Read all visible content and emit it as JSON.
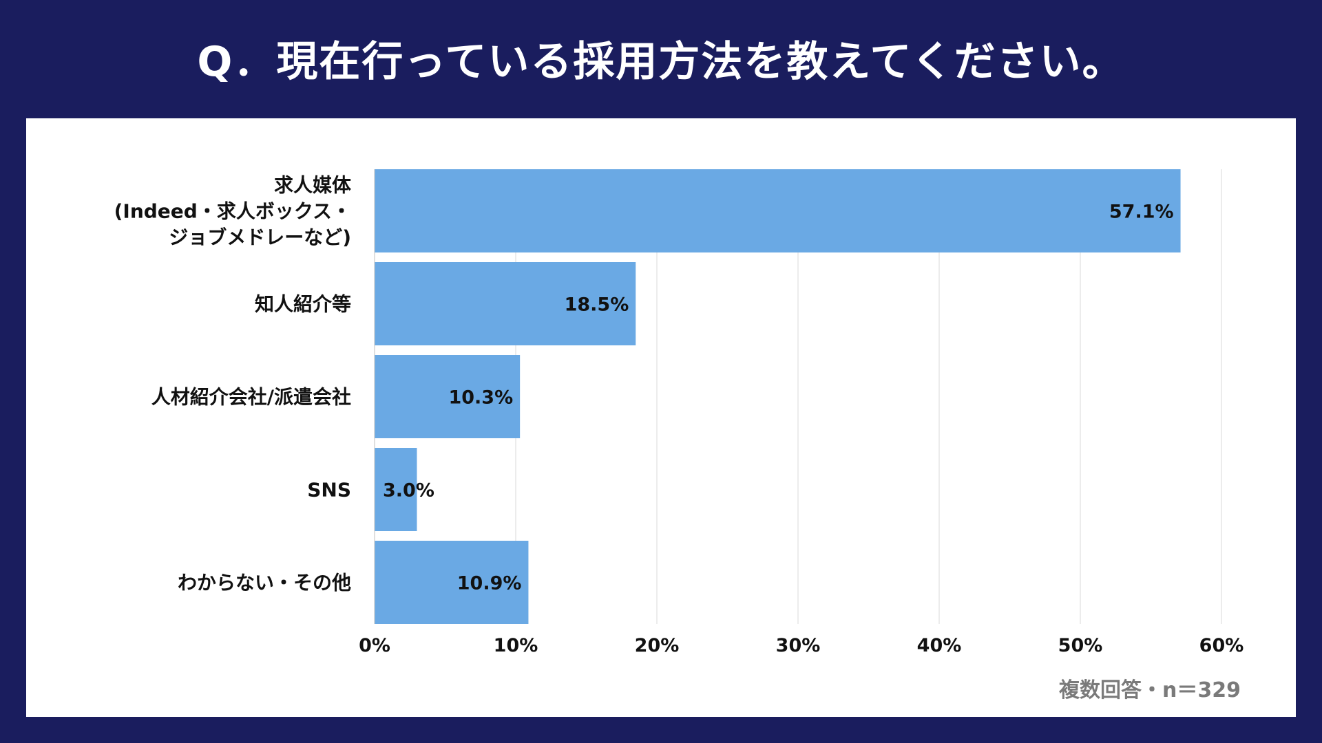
{
  "title": "Q．現在行っている採用方法を教えてください。",
  "note": "複数回答・n＝329",
  "colors": {
    "background": "#1a1d5e",
    "panel": "#ffffff",
    "bar": "#6aa9e4",
    "grid": "#d9d9d9",
    "note": "#7a7a7a"
  },
  "chart_data": {
    "type": "bar",
    "orientation": "horizontal",
    "title": "Q．現在行っている採用方法を教えてください。",
    "categories": [
      [
        "求人媒体",
        "(Indeed・求人ボックス・",
        "ジョブメドレーなど)"
      ],
      [
        "知人紹介等"
      ],
      [
        "人材紹介会社/派遣会社"
      ],
      [
        "SNS"
      ],
      [
        "わからない・その他"
      ]
    ],
    "values": [
      57.1,
      18.5,
      10.3,
      3.0,
      10.9
    ],
    "value_labels": [
      "57.1%",
      "18.5%",
      "10.3%",
      "3.0%",
      "10.9%"
    ],
    "xlim": [
      0,
      60
    ],
    "xticks": [
      0,
      10,
      20,
      30,
      40,
      50,
      60
    ],
    "xtick_labels": [
      "0%",
      "10%",
      "20%",
      "30%",
      "40%",
      "50%",
      "60%"
    ],
    "grid": true,
    "legend": false
  }
}
